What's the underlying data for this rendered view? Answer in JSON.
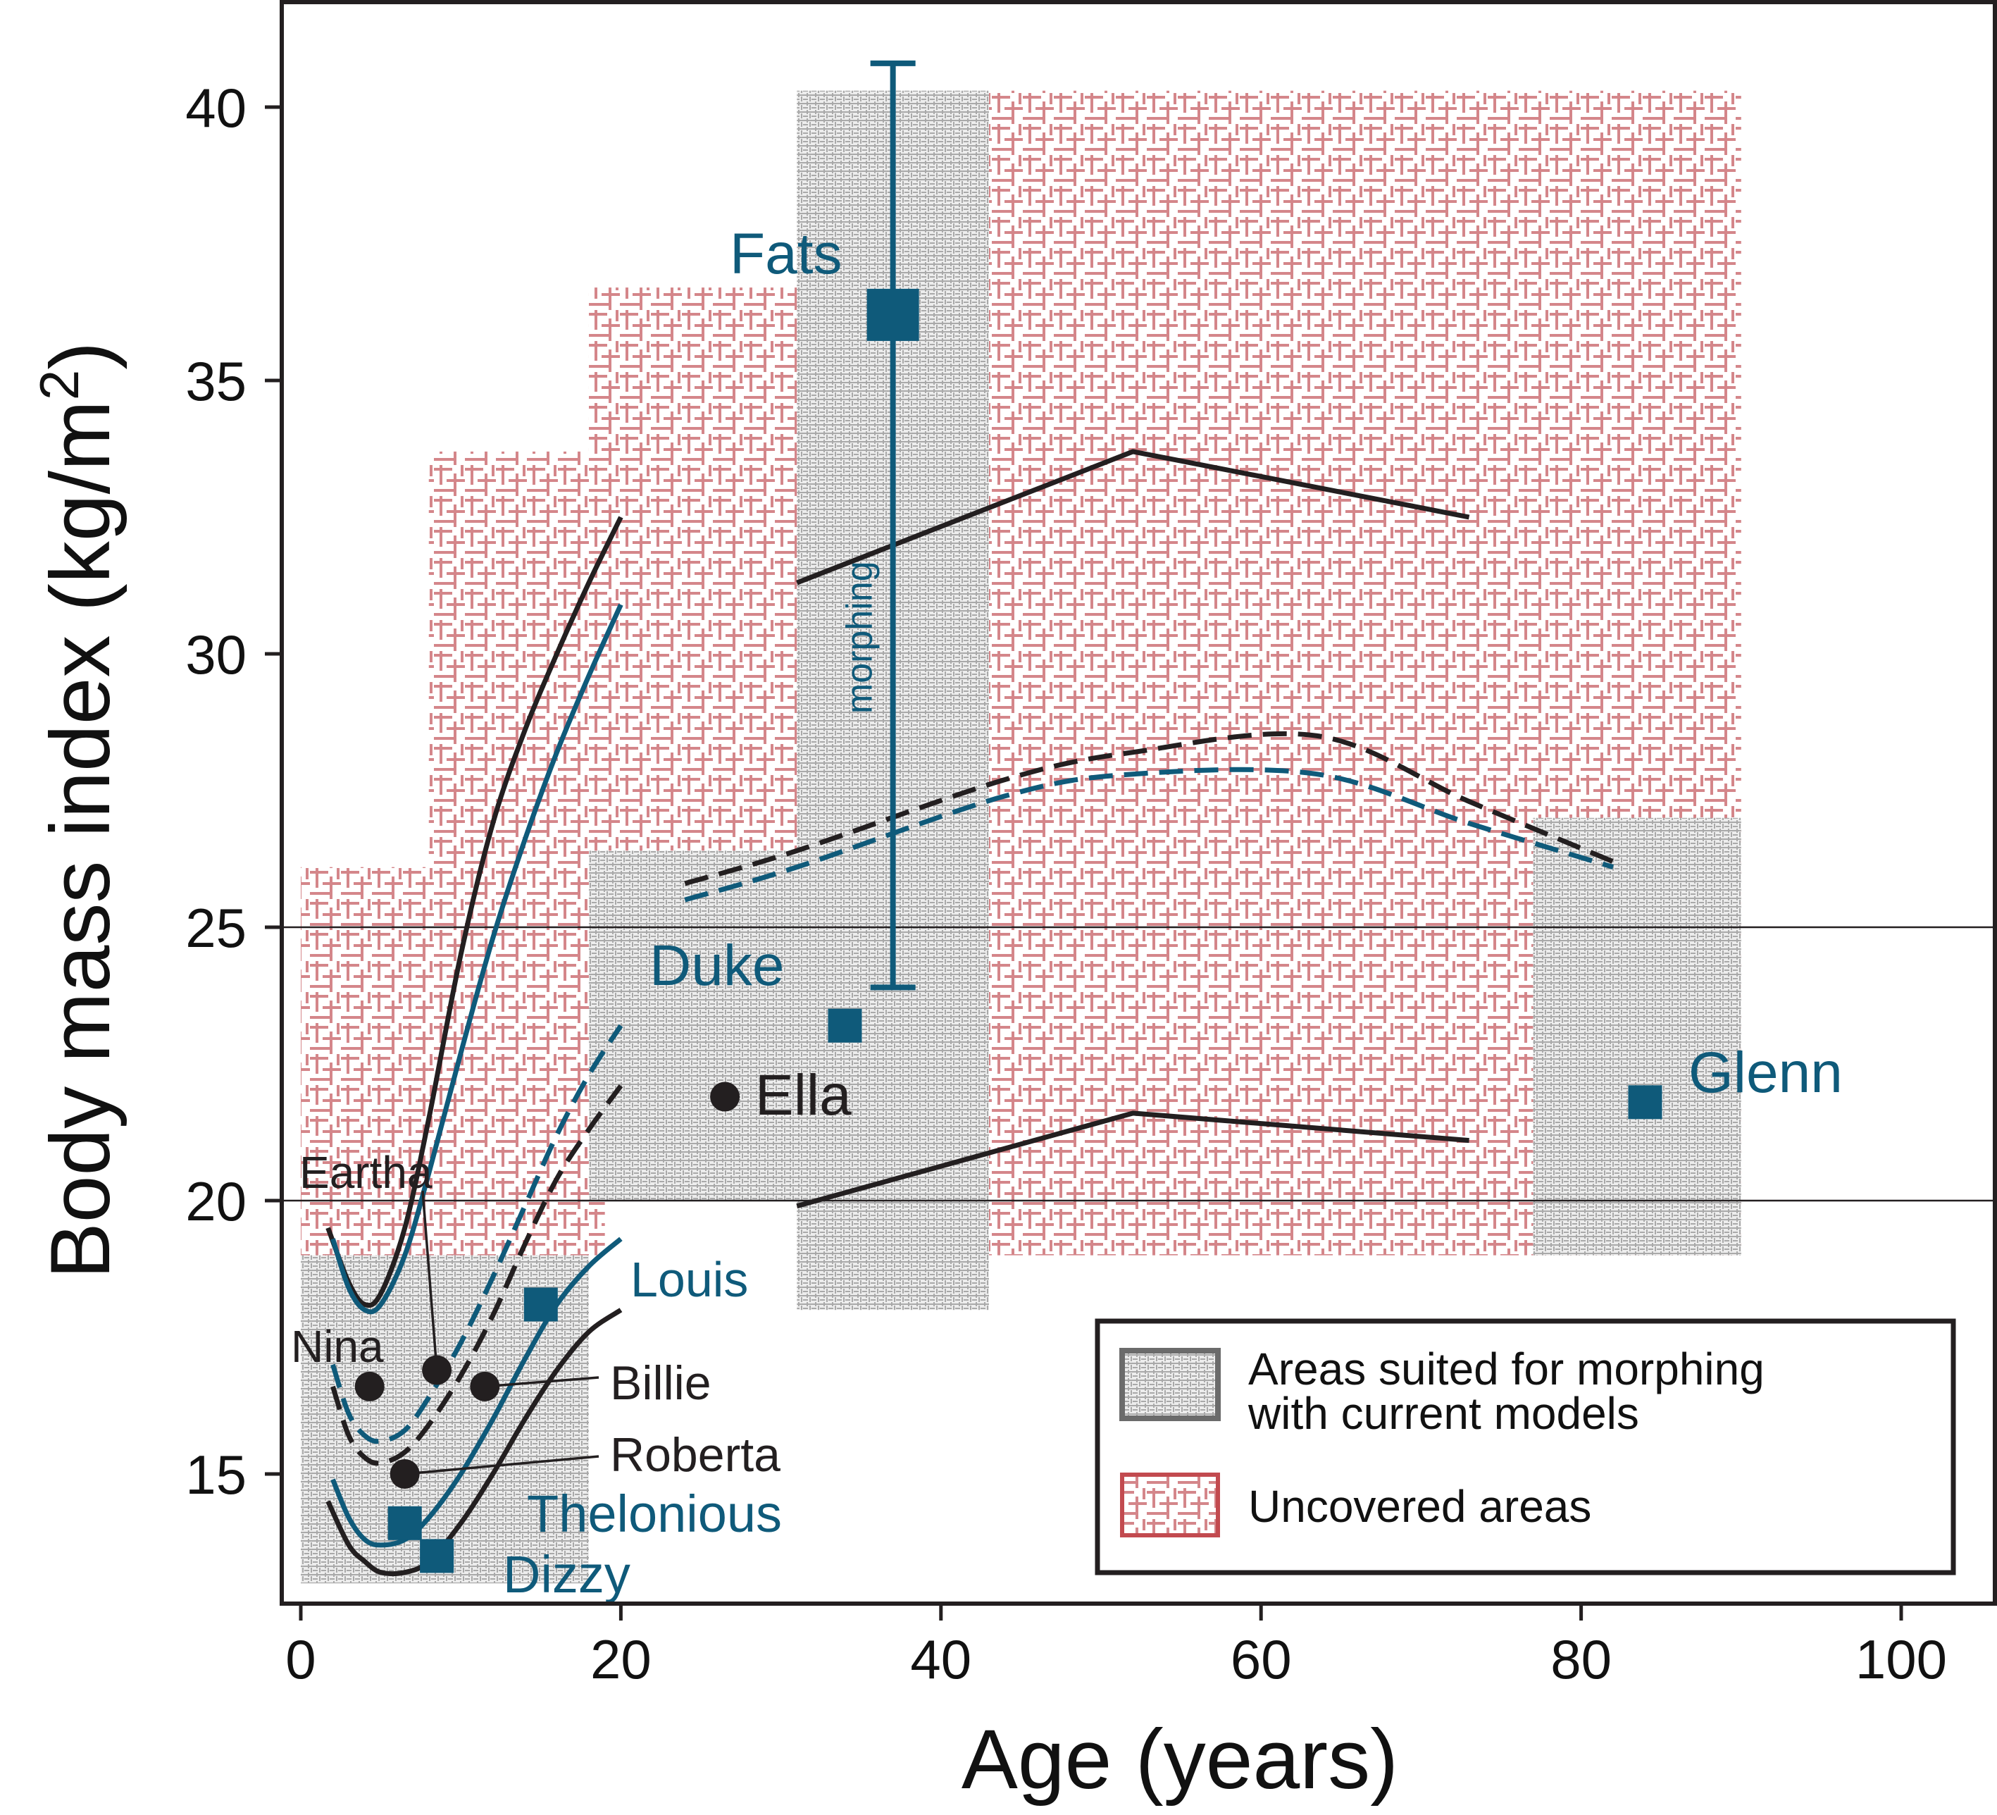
{
  "chart_data": {
    "type": "scatter",
    "xlabel": "Age (years)",
    "ylabel": "Body mass index (kg/m²)",
    "xlim": [
      -0.5,
      105
    ],
    "ylim": [
      12.5,
      42
    ],
    "x_ticks": [
      0,
      20,
      40,
      60,
      80,
      100
    ],
    "y_ticks": [
      15,
      20,
      25,
      30,
      35,
      40
    ],
    "reference_lines_y": [
      20,
      25
    ],
    "colors": {
      "blue": "#0f5a7a",
      "black": "#231f20",
      "red_hatch": "#d4868a",
      "gray_hatch": "#b3b3b3"
    },
    "morphing_areas": [
      {
        "x": [
          0,
          18
        ],
        "y": [
          13,
          19
        ]
      },
      {
        "x": [
          18,
          31
        ],
        "y": [
          20,
          26.4
        ]
      },
      {
        "x": [
          31,
          43
        ],
        "y": [
          18,
          40.3
        ]
      },
      {
        "x": [
          77,
          90
        ],
        "y": [
          19,
          27
        ]
      }
    ],
    "uncovered_areas": [
      {
        "x": [
          0,
          8
        ],
        "y": [
          19,
          26.1
        ]
      },
      {
        "x": [
          8,
          19
        ],
        "y": [
          19,
          33.7
        ]
      },
      {
        "x": [
          18,
          31
        ],
        "y": [
          26.4,
          36.7
        ]
      },
      {
        "x": [
          43,
          90
        ],
        "y": [
          19,
          40.3
        ]
      }
    ],
    "series": [
      {
        "name": "Fats",
        "color": "#0f5a7a",
        "marker": "square",
        "x": [
          37
        ],
        "y": [
          36.2
        ],
        "err_low": [
          23.9
        ],
        "err_high": [
          40.8
        ],
        "err_label": "morphing"
      },
      {
        "name": "Duke",
        "color": "#0f5a7a",
        "marker": "square",
        "x": [
          34
        ],
        "y": [
          23.2
        ]
      },
      {
        "name": "Glenn",
        "color": "#0f5a7a",
        "marker": "square",
        "x": [
          84
        ],
        "y": [
          21.8
        ]
      },
      {
        "name": "Louis",
        "color": "#0f5a7a",
        "marker": "square",
        "x": [
          15
        ],
        "y": [
          18.1
        ]
      },
      {
        "name": "Thelonious",
        "color": "#0f5a7a",
        "marker": "square",
        "x": [
          6.5
        ],
        "y": [
          14.1
        ]
      },
      {
        "name": "Dizzy",
        "color": "#0f5a7a",
        "marker": "square",
        "x": [
          8.5
        ],
        "y": [
          13.5
        ]
      },
      {
        "name": "Ella",
        "color": "#231f20",
        "marker": "circle",
        "x": [
          26.5
        ],
        "y": [
          21.9
        ]
      },
      {
        "name": "Eartha",
        "color": "#231f20",
        "marker": "circle",
        "x": [
          8.5
        ],
        "y": [
          16.9
        ]
      },
      {
        "name": "Nina",
        "color": "#231f20",
        "marker": "circle",
        "x": [
          4.3
        ],
        "y": [
          16.6
        ]
      },
      {
        "name": "Billie",
        "color": "#231f20",
        "marker": "circle",
        "x": [
          11.5
        ],
        "y": [
          16.6
        ]
      },
      {
        "name": "Roberta",
        "color": "#231f20",
        "marker": "circle",
        "x": [
          6.5
        ],
        "y": [
          15
        ]
      }
    ],
    "curves": [
      {
        "color": "#231f20",
        "style": "solid",
        "x": [
          1.7,
          3,
          4,
          5,
          6.5,
          8,
          10,
          12,
          14,
          16,
          18,
          20
        ],
        "y": [
          19.5,
          18.5,
          18.1,
          18.3,
          19.5,
          21.5,
          24.5,
          26.9,
          28.6,
          30,
          31.3,
          32.5
        ]
      },
      {
        "color": "#0f5a7a",
        "style": "solid",
        "x": [
          2,
          3,
          4,
          5,
          6.5,
          8,
          10,
          12,
          14,
          16,
          18,
          20
        ],
        "y": [
          19.3,
          18.4,
          18,
          18.1,
          19,
          20.5,
          22.7,
          24.8,
          26.6,
          28.2,
          29.6,
          30.9
        ]
      },
      {
        "color": "#231f20",
        "style": "dashed",
        "x": [
          2,
          3,
          4,
          5,
          6.5,
          8,
          10,
          12,
          14,
          16,
          18,
          20
        ],
        "y": [
          16.6,
          15.7,
          15.3,
          15.2,
          15.4,
          15.9,
          16.8,
          17.9,
          19.2,
          20.4,
          21.3,
          22.1
        ]
      },
      {
        "color": "#0f5a7a",
        "style": "dashed",
        "x": [
          2,
          3,
          4,
          5,
          6.5,
          8,
          10,
          12,
          14,
          16,
          18,
          20
        ],
        "y": [
          17,
          16.1,
          15.7,
          15.6,
          15.8,
          16.4,
          17.4,
          18.6,
          19.9,
          21.2,
          22.3,
          23.2
        ]
      },
      {
        "color": "#0f5a7a",
        "style": "solid",
        "x": [
          2,
          3,
          4,
          5,
          6.5,
          8,
          10,
          12,
          14,
          16,
          18,
          20
        ],
        "y": [
          14.9,
          14.2,
          13.8,
          13.7,
          13.8,
          14.2,
          15,
          16,
          17.1,
          18.1,
          18.8,
          19.3
        ]
      },
      {
        "color": "#231f20",
        "style": "solid",
        "x": [
          1.7,
          3,
          4,
          5,
          6.5,
          8,
          10,
          12,
          14,
          16,
          18,
          20
        ],
        "y": [
          14.5,
          13.7,
          13.4,
          13.2,
          13.2,
          13.4,
          14.1,
          15,
          16,
          16.9,
          17.6,
          18.0
        ]
      },
      {
        "color": "#231f20",
        "style": "solid",
        "x": [
          31,
          52,
          73
        ],
        "y": [
          31.3,
          33.7,
          32.5
        ]
      },
      {
        "color": "#231f20",
        "style": "solid",
        "x": [
          31,
          52,
          73
        ],
        "y": [
          19.9,
          21.6,
          21.1
        ]
      },
      {
        "color": "#231f20",
        "style": "dashed",
        "x": [
          24,
          31,
          44,
          52,
          63.5,
          73,
          82
        ],
        "y": [
          25.8,
          26.4,
          27.7,
          28.2,
          28.5,
          27.3,
          26.2
        ]
      },
      {
        "color": "#0f5a7a",
        "style": "dashed",
        "x": [
          24,
          31,
          44,
          52,
          63.5,
          73,
          82
        ],
        "y": [
          25.5,
          26.1,
          27.4,
          27.8,
          27.8,
          26.9,
          26.1
        ]
      }
    ],
    "legend": {
      "placement": "bottom-right",
      "morphing_label_line1": "Areas suited for morphing",
      "morphing_label_line2": "with current models",
      "uncovered_label": "Uncovered areas"
    }
  }
}
